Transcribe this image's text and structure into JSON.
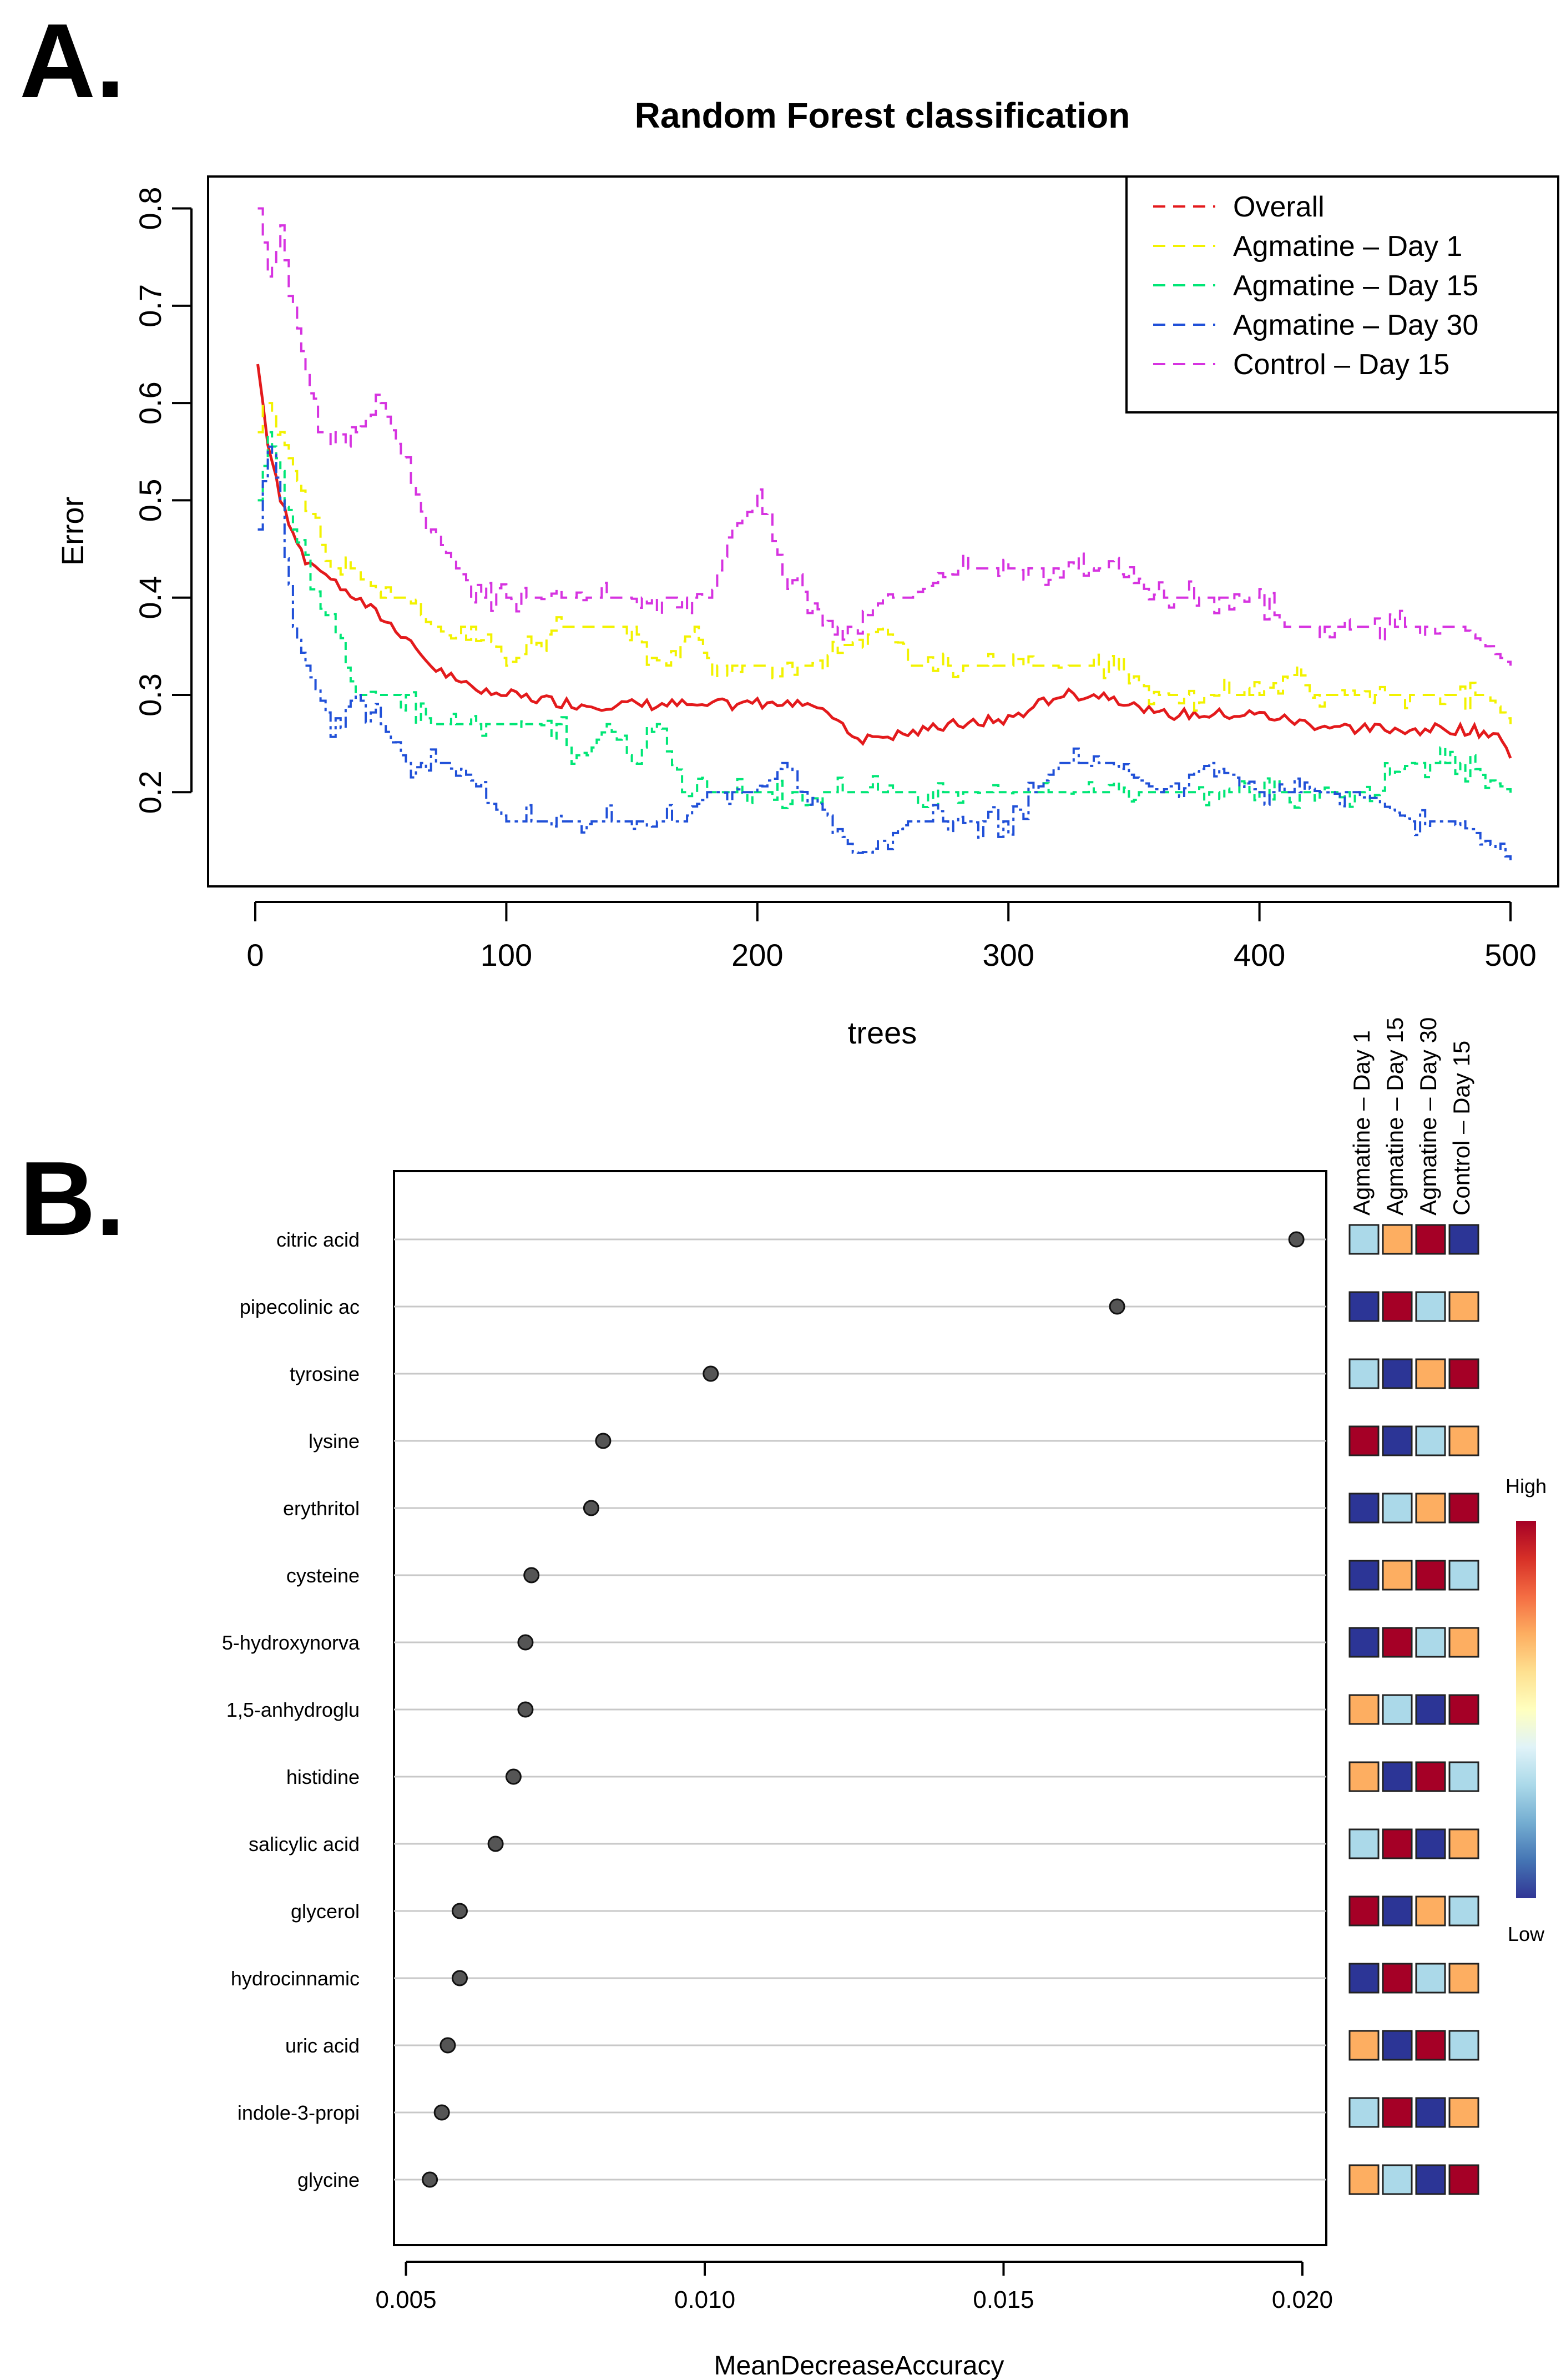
{
  "panels": {
    "a_label": "A.",
    "b_label": "B."
  },
  "chart_data": [
    {
      "type": "line",
      "title": "Random Forest classification",
      "xlabel": "trees",
      "ylabel": "Error",
      "xlim": [
        0,
        500
      ],
      "ylim": [
        0.13,
        0.81
      ],
      "x_ticks": [
        "0",
        "100",
        "200",
        "300",
        "400",
        "500"
      ],
      "y_ticks": [
        "0.2",
        "0.3",
        "0.4",
        "0.5",
        "0.6",
        "0.7",
        "0.8"
      ],
      "legend_position": "top-right",
      "series": [
        {
          "name": "Overall",
          "color": "#e31a1c",
          "points": [
            [
              1,
              0.64
            ],
            [
              5,
              0.56
            ],
            [
              10,
              0.5
            ],
            [
              15,
              0.47
            ],
            [
              20,
              0.44
            ],
            [
              30,
              0.42
            ],
            [
              40,
              0.4
            ],
            [
              50,
              0.38
            ],
            [
              60,
              0.36
            ],
            [
              70,
              0.33
            ],
            [
              80,
              0.315
            ],
            [
              90,
              0.305
            ],
            [
              100,
              0.3
            ],
            [
              130,
              0.29
            ],
            [
              160,
              0.29
            ],
            [
              190,
              0.29
            ],
            [
              220,
              0.295
            ],
            [
              230,
              0.28
            ],
            [
              240,
              0.255
            ],
            [
              260,
              0.26
            ],
            [
              280,
              0.27
            ],
            [
              300,
              0.275
            ],
            [
              320,
              0.3
            ],
            [
              340,
              0.3
            ],
            [
              360,
              0.28
            ],
            [
              380,
              0.28
            ],
            [
              400,
              0.28
            ],
            [
              420,
              0.27
            ],
            [
              440,
              0.265
            ],
            [
              460,
              0.265
            ],
            [
              480,
              0.265
            ],
            [
              495,
              0.26
            ],
            [
              500,
              0.235
            ]
          ]
        },
        {
          "name": "Agmatine – Day 1",
          "color": "#f2f200",
          "points": [
            [
              1,
              0.57
            ],
            [
              5,
              0.6
            ],
            [
              10,
              0.57
            ],
            [
              15,
              0.53
            ],
            [
              20,
              0.5
            ],
            [
              30,
              0.43
            ],
            [
              40,
              0.43
            ],
            [
              50,
              0.4
            ],
            [
              60,
              0.4
            ],
            [
              70,
              0.37
            ],
            [
              80,
              0.37
            ],
            [
              90,
              0.37
            ],
            [
              100,
              0.33
            ],
            [
              120,
              0.37
            ],
            [
              150,
              0.37
            ],
            [
              160,
              0.33
            ],
            [
              175,
              0.37
            ],
            [
              180,
              0.33
            ],
            [
              220,
              0.33
            ],
            [
              250,
              0.37
            ],
            [
              260,
              0.33
            ],
            [
              300,
              0.33
            ],
            [
              320,
              0.33
            ],
            [
              340,
              0.33
            ],
            [
              360,
              0.3
            ],
            [
              400,
              0.3
            ],
            [
              415,
              0.33
            ],
            [
              420,
              0.3
            ],
            [
              460,
              0.3
            ],
            [
              490,
              0.3
            ],
            [
              500,
              0.27
            ]
          ]
        },
        {
          "name": "Agmatine – Day 15",
          "color": "#00e676",
          "points": [
            [
              1,
              0.5
            ],
            [
              5,
              0.57
            ],
            [
              10,
              0.53
            ],
            [
              15,
              0.47
            ],
            [
              20,
              0.43
            ],
            [
              30,
              0.37
            ],
            [
              40,
              0.3
            ],
            [
              50,
              0.3
            ],
            [
              60,
              0.3
            ],
            [
              70,
              0.27
            ],
            [
              80,
              0.27
            ],
            [
              100,
              0.27
            ],
            [
              120,
              0.27
            ],
            [
              130,
              0.23
            ],
            [
              140,
              0.27
            ],
            [
              150,
              0.23
            ],
            [
              160,
              0.27
            ],
            [
              170,
              0.2
            ],
            [
              200,
              0.2
            ],
            [
              220,
              0.2
            ],
            [
              250,
              0.2
            ],
            [
              280,
              0.2
            ],
            [
              300,
              0.2
            ],
            [
              320,
              0.2
            ],
            [
              350,
              0.2
            ],
            [
              380,
              0.2
            ],
            [
              400,
              0.2
            ],
            [
              420,
              0.2
            ],
            [
              440,
              0.2
            ],
            [
              460,
              0.23
            ],
            [
              480,
              0.23
            ],
            [
              500,
              0.2
            ]
          ]
        },
        {
          "name": "Agmatine – Day 30",
          "color": "#2050d8",
          "points": [
            [
              1,
              0.47
            ],
            [
              5,
              0.57
            ],
            [
              10,
              0.5
            ],
            [
              15,
              0.37
            ],
            [
              20,
              0.33
            ],
            [
              30,
              0.27
            ],
            [
              40,
              0.3
            ],
            [
              50,
              0.27
            ],
            [
              60,
              0.23
            ],
            [
              70,
              0.23
            ],
            [
              80,
              0.23
            ],
            [
              90,
              0.2
            ],
            [
              100,
              0.17
            ],
            [
              110,
              0.17
            ],
            [
              130,
              0.17
            ],
            [
              150,
              0.17
            ],
            [
              170,
              0.17
            ],
            [
              180,
              0.2
            ],
            [
              200,
              0.2
            ],
            [
              210,
              0.23
            ],
            [
              220,
              0.2
            ],
            [
              230,
              0.17
            ],
            [
              240,
              0.13
            ],
            [
              260,
              0.17
            ],
            [
              280,
              0.17
            ],
            [
              300,
              0.17
            ],
            [
              310,
              0.2
            ],
            [
              320,
              0.23
            ],
            [
              340,
              0.23
            ],
            [
              360,
              0.2
            ],
            [
              380,
              0.23
            ],
            [
              400,
              0.2
            ],
            [
              420,
              0.2
            ],
            [
              440,
              0.2
            ],
            [
              460,
              0.17
            ],
            [
              480,
              0.17
            ],
            [
              500,
              0.13
            ]
          ]
        },
        {
          "name": "Control – Day 15",
          "color": "#d633e0",
          "points": [
            [
              1,
              0.8
            ],
            [
              5,
              0.73
            ],
            [
              10,
              0.77
            ],
            [
              15,
              0.7
            ],
            [
              20,
              0.63
            ],
            [
              25,
              0.57
            ],
            [
              30,
              0.57
            ],
            [
              40,
              0.57
            ],
            [
              50,
              0.6
            ],
            [
              60,
              0.53
            ],
            [
              70,
              0.47
            ],
            [
              80,
              0.43
            ],
            [
              90,
              0.4
            ],
            [
              100,
              0.4
            ],
            [
              110,
              0.4
            ],
            [
              130,
              0.4
            ],
            [
              150,
              0.4
            ],
            [
              170,
              0.4
            ],
            [
              180,
              0.4
            ],
            [
              190,
              0.47
            ],
            [
              200,
              0.5
            ],
            [
              210,
              0.43
            ],
            [
              220,
              0.4
            ],
            [
              230,
              0.37
            ],
            [
              240,
              0.37
            ],
            [
              250,
              0.4
            ],
            [
              260,
              0.4
            ],
            [
              280,
              0.43
            ],
            [
              300,
              0.43
            ],
            [
              320,
              0.43
            ],
            [
              340,
              0.43
            ],
            [
              360,
              0.4
            ],
            [
              380,
              0.4
            ],
            [
              400,
              0.4
            ],
            [
              410,
              0.37
            ],
            [
              420,
              0.37
            ],
            [
              440,
              0.37
            ],
            [
              460,
              0.37
            ],
            [
              480,
              0.37
            ],
            [
              500,
              0.33
            ]
          ]
        }
      ]
    },
    {
      "type": "scatter",
      "xlabel": "MeanDecreaseAccuracy",
      "ylabel": "",
      "xlim": [
        0.0048,
        0.0204
      ],
      "x_ticks": [
        0.005,
        0.01,
        0.015,
        0.02
      ],
      "x_tick_labels": [
        "0.005",
        "0.010",
        "0.015",
        "0.020"
      ],
      "grid": "horizontal",
      "categories": [
        "citric acid",
        "pipecolinic ac",
        "tyrosine",
        "lysine",
        "erythritol",
        "cysteine",
        "5-hydroxynorva",
        "1,5-anhydroglu",
        "histidine",
        "salicylic acid",
        "glycerol",
        "hydrocinnamic",
        "uric acid",
        "indole-3-propi",
        "glycine"
      ],
      "values": [
        0.0199,
        0.0169,
        0.0101,
        0.0083,
        0.0081,
        0.0071,
        0.007,
        0.007,
        0.0068,
        0.0065,
        0.0059,
        0.0059,
        0.0057,
        0.0056,
        0.0054
      ]
    },
    {
      "type": "heatmap",
      "columns": [
        "Agmatine – Day 1",
        "Agmatine – Day 15",
        "Agmatine – Day 30",
        "Control – Day 15"
      ],
      "rows": [
        "citric acid",
        "pipecolinic ac",
        "tyrosine",
        "lysine",
        "erythritol",
        "cysteine",
        "5-hydroxynorva",
        "1,5-anhydroglu",
        "histidine",
        "salicylic acid",
        "glycerol",
        "hydrocinnamic",
        "uric acid",
        "indole-3-propi",
        "glycine"
      ],
      "levels": [
        [
          2,
          3,
          4,
          1
        ],
        [
          1,
          4,
          2,
          3
        ],
        [
          2,
          1,
          3,
          4
        ],
        [
          4,
          1,
          2,
          3
        ],
        [
          1,
          2,
          3,
          4
        ],
        [
          1,
          3,
          4,
          2
        ],
        [
          1,
          4,
          2,
          3
        ],
        [
          3,
          2,
          1,
          4
        ],
        [
          3,
          1,
          4,
          2
        ],
        [
          2,
          4,
          1,
          3
        ],
        [
          4,
          1,
          3,
          2
        ],
        [
          1,
          4,
          2,
          3
        ],
        [
          3,
          1,
          4,
          2
        ],
        [
          2,
          4,
          1,
          3
        ],
        [
          3,
          2,
          1,
          4
        ]
      ],
      "level_colors": {
        "1": "#2c3596",
        "2": "#abd9e9",
        "3": "#fdae61",
        "4": "#a50026"
      },
      "colorbar": {
        "high_label": "High",
        "low_label": "Low",
        "colors": [
          "#313695",
          "#4575b4",
          "#74add1",
          "#abd9e9",
          "#e0f3f8",
          "#ffffbf",
          "#fee090",
          "#fdae61",
          "#f46d43",
          "#d73027",
          "#a50026"
        ]
      }
    }
  ]
}
